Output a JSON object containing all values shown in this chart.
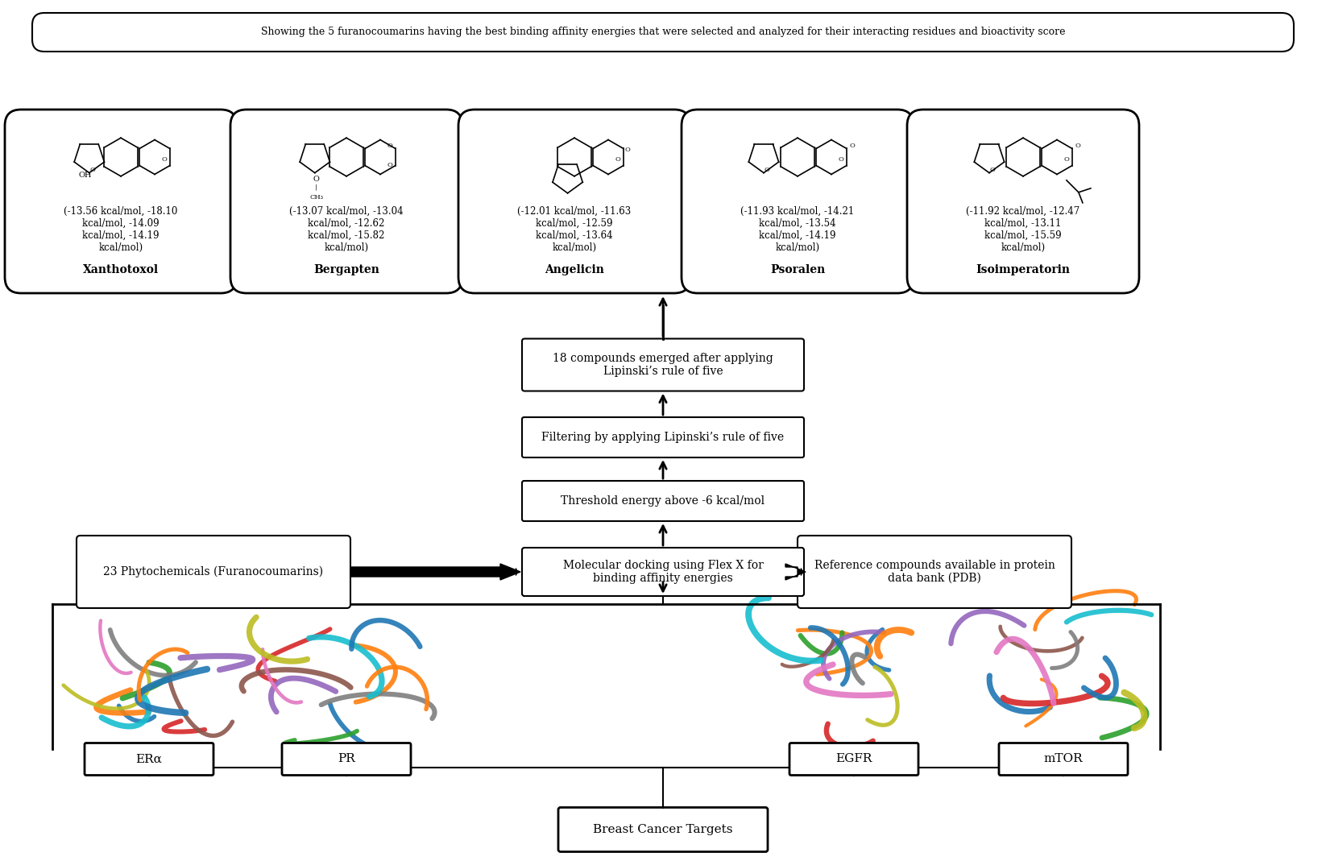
{
  "title": "Breast Cancer Targets",
  "bg_color": "#ffffff",
  "box_edge_color": "#000000",
  "box_face_color": "#ffffff",
  "text_color": "#000000",
  "targets": [
    "ERα",
    "PR",
    "EGFR",
    "mTOR"
  ],
  "flow_boxes": [
    "Molecular docking using Flex X for\nbinding affinity energies",
    "Threshold energy above -6 kcal/mol",
    "Filtering by applying Lipinski’s rule of five",
    "18 compounds emerged after applying\nLipinski’s rule of five"
  ],
  "side_boxes": [
    "23 Phytochemicals (Furanocoumarins)",
    "Reference compounds available in protein\ndata bank (PDB)"
  ],
  "compounds": [
    {
      "name": "Xanthotoxol",
      "text": "(-13.56 kcal/mol, -18.10\nkcal/mol, -14.09\nkcal/mol, -14.19\nkcal/mol)"
    },
    {
      "name": "Bergapten",
      "text": "(-13.07 kcal/mol, -13.04\nkcal/mol, -12.62\nkcal/mol, -15.82\nkcal/mol)"
    },
    {
      "name": "Angelicin",
      "text": "(-12.01 kcal/mol, -11.63\nkcal/mol, -12.59\nkcal/mol, -13.64\nkcal/mol)"
    },
    {
      "name": "Psoralen",
      "text": "(-11.93 kcal/mol, -14.21\nkcal/mol, -13.54\nkcal/mol, -14.19\nkcal/mol)"
    },
    {
      "name": "Isoimperatorin",
      "text": "(-11.92 kcal/mol, -12.47\nkcal/mol, -13.11\nkcal/mol, -15.59\nkcal/mol)"
    }
  ],
  "footer_text": "Showing the 5 furanocoumarins having the best binding affinity energies that were selected and analyzed for their interacting residues and bioactivity score"
}
